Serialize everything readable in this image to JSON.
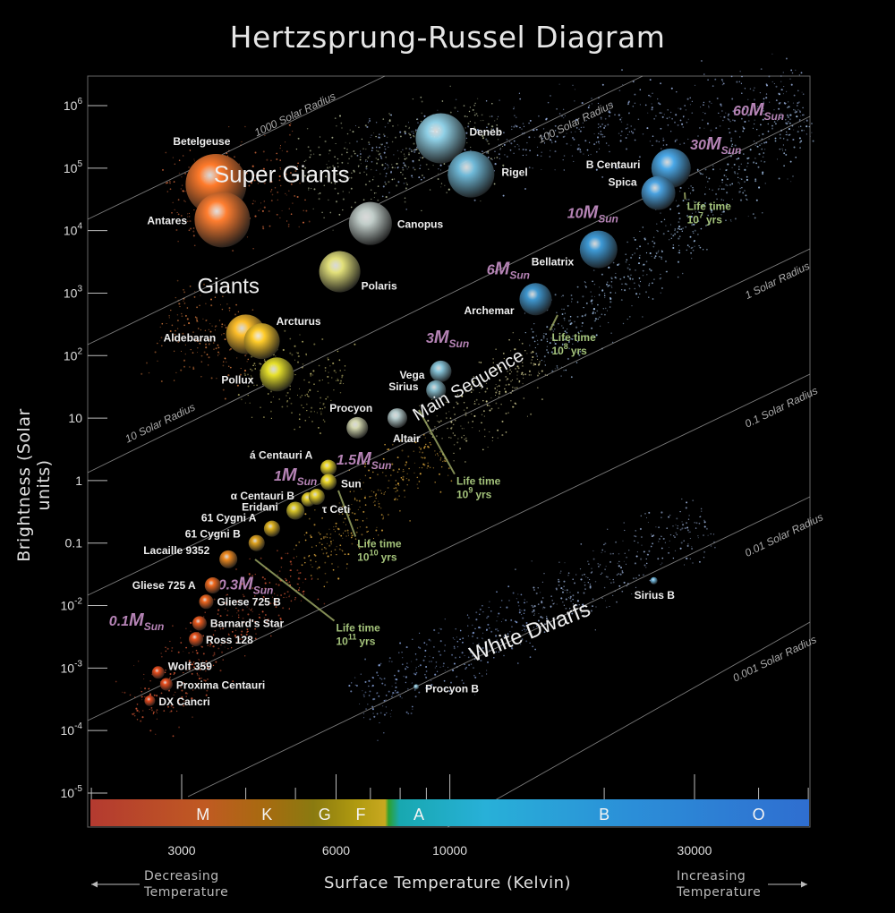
{
  "title": "Hertzsprung-Russel Diagram",
  "colors": {
    "background": "#000000",
    "life_time": "#a3c27a",
    "mass": "#b583b5"
  },
  "chart_data": {
    "type": "scatter",
    "title": "Hertzsprung-Russel Diagram",
    "xlabel": "Surface Temperature (Kelvin)",
    "ylabel": "Brightness (Solar units)",
    "x_scale": "log-reversed",
    "y_scale": "log",
    "xlim": [
      2000,
      50000
    ],
    "ylim": [
      1e-05,
      1000000
    ],
    "y_ticks": [
      {
        "base": "10",
        "exp": "-5",
        "value": 1e-05
      },
      {
        "base": "10",
        "exp": "-4",
        "value": 0.0001
      },
      {
        "base": "10",
        "exp": "-3",
        "value": 0.001
      },
      {
        "base": "10",
        "exp": "-2",
        "value": 0.01
      },
      {
        "base": "",
        "exp": "",
        "text": "0.1",
        "value": 0.1
      },
      {
        "base": "",
        "exp": "",
        "text": "1",
        "value": 1
      },
      {
        "base": "",
        "exp": "",
        "text": "10",
        "value": 10
      },
      {
        "base": "10",
        "exp": "2",
        "value": 100
      },
      {
        "base": "10",
        "exp": "3",
        "value": 1000
      },
      {
        "base": "10",
        "exp": "4",
        "value": 10000
      },
      {
        "base": "10",
        "exp": "5",
        "value": 100000
      },
      {
        "base": "10",
        "exp": "6",
        "value": 1000000
      }
    ],
    "x_ticks": [
      {
        "text": "3000",
        "value": 3000
      },
      {
        "text": "6000",
        "value": 6000
      },
      {
        "text": "10000",
        "value": 10000
      },
      {
        "text": "30000",
        "value": 30000
      }
    ],
    "spectral_classes": [
      {
        "text": "M",
        "temp": 3300
      },
      {
        "text": "K",
        "temp": 4400
      },
      {
        "text": "G",
        "temp": 5700
      },
      {
        "text": "F",
        "temp": 6700
      },
      {
        "text": "A",
        "temp": 8700
      },
      {
        "text": "B",
        "temp": 20000
      },
      {
        "text": "O",
        "temp": 40000
      }
    ],
    "regions": [
      {
        "text": "Super Giants",
        "temp": 4700,
        "lum": 60000,
        "size": 26,
        "rotate": 0
      },
      {
        "text": "Giants",
        "temp": 3700,
        "lum": 1000,
        "size": 24,
        "rotate": 0
      },
      {
        "text": "Main Sequence",
        "temp": 11000,
        "lum": 28,
        "size": 20,
        "rotate": -30
      },
      {
        "text": "White Dwarfs",
        "temp": 14500,
        "lum": 0.003,
        "size": 24,
        "rotate": -22
      }
    ],
    "radius_lines": [
      {
        "text": "1000  Solar Radius",
        "temp": 4200,
        "lum": 320000
      },
      {
        "text": "100  Solar Radius",
        "temp": 15000,
        "lum": 250000
      },
      {
        "text": "1 Solar Radius",
        "temp": 38000,
        "lum": 800
      },
      {
        "text": "0.1 Solar Radius",
        "temp": 38000,
        "lum": 7
      },
      {
        "text": "0.01  Solar Radius",
        "temp": 38000,
        "lum": 0.06
      },
      {
        "text": "0.001  Solar Radius",
        "temp": 36000,
        "lum": 0.0006
      },
      {
        "text": "10  Solar Radius",
        "temp": 2350,
        "lum": 4
      }
    ],
    "stars": [
      {
        "name": "Betelgeuse",
        "temp": 3500,
        "lum": 55000,
        "r": 34,
        "color": "#ff7a2a",
        "lx": -48,
        "ly": -44
      },
      {
        "name": "Antares",
        "temp": 3600,
        "lum": 15000,
        "r": 31,
        "color": "#ff7e30",
        "lx": -84,
        "ly": 5
      },
      {
        "name": "Deneb",
        "temp": 9600,
        "lum": 300000,
        "r": 28,
        "color": "#8fd0e6",
        "lx": 32,
        "ly": -3
      },
      {
        "name": "Rigel",
        "temp": 11000,
        "lum": 80000,
        "r": 26,
        "color": "#6fb9d8",
        "lx": 34,
        "ly": 2
      },
      {
        "name": "Canopus",
        "temp": 7000,
        "lum": 13000,
        "r": 24,
        "color": "#c0ccc8",
        "lx": 30,
        "ly": 5
      },
      {
        "name": "Polaris",
        "temp": 6100,
        "lum": 2200,
        "r": 23,
        "color": "#e2e07a",
        "lx": 24,
        "ly": 20
      },
      {
        "name": "Aldebaran",
        "temp": 4000,
        "lum": 220,
        "r": 22,
        "color": "#ffbf2a",
        "lx": -92,
        "ly": 8
      },
      {
        "name": "Arcturus",
        "temp": 4300,
        "lum": 170,
        "r": 20,
        "color": "#ffcc2a",
        "lx": 16,
        "ly": -18
      },
      {
        "name": "Pollux",
        "temp": 4600,
        "lum": 50,
        "r": 19,
        "color": "#e6e02a",
        "lx": -62,
        "ly": 10
      },
      {
        "name": "B Centauri",
        "temp": 27000,
        "lum": 100000,
        "r": 22,
        "color": "#4aa8e8",
        "lx": -95,
        "ly": 0
      },
      {
        "name": "Spica",
        "temp": 25500,
        "lum": 40000,
        "r": 19,
        "color": "#4aa2e0",
        "lx": -56,
        "ly": -8
      },
      {
        "name": "Bellatrix",
        "temp": 19500,
        "lum": 5000,
        "r": 21,
        "color": "#3e9ad6",
        "lx": -75,
        "ly": 18
      },
      {
        "name": "Archemar",
        "temp": 14700,
        "lum": 800,
        "r": 18,
        "color": "#3f97cf",
        "lx": -80,
        "ly": 17
      },
      {
        "name": "Vega",
        "temp": 9600,
        "lum": 56,
        "r": 12,
        "color": "#88c5da",
        "lx": -46,
        "ly": 8
      },
      {
        "name": "Sirius",
        "temp": 9400,
        "lum": 28,
        "r": 11,
        "color": "#86bccc",
        "lx": -53,
        "ly": 0
      },
      {
        "name": "Procyon",
        "temp": 6600,
        "lum": 7,
        "r": 12,
        "color": "#d4d8b0",
        "lx": -31,
        "ly": -18
      },
      {
        "name": "Altair",
        "temp": 7900,
        "lum": 10,
        "r": 11,
        "color": "#b8cfd0",
        "lx": -5,
        "ly": 27
      },
      {
        "name": "á Centauri A",
        "temp": 5800,
        "lum": 1.6,
        "r": 9,
        "color": "#ecd82a",
        "lx": -88,
        "ly": -10
      },
      {
        "name": "Sun",
        "temp": 5800,
        "lum": 0.95,
        "r": 9,
        "color": "#ecd82a",
        "lx": 14,
        "ly": 6
      },
      {
        "name": "α Centauri B",
        "temp": 5300,
        "lum": 0.5,
        "r": 8,
        "color": "#e6d02a",
        "lx": -87,
        "ly": 0
      },
      {
        "name": "τ Ceti",
        "temp": 5500,
        "lum": 0.55,
        "r": 9,
        "color": "#e6d02a",
        "lx": 6,
        "ly": 18
      },
      {
        "name": "Eridani",
        "temp": 5000,
        "lum": 0.33,
        "r": 10,
        "color": "#dcc82a",
        "lx": -60,
        "ly": 0
      },
      {
        "name": "61 Cygni A",
        "temp": 4500,
        "lum": 0.17,
        "r": 9,
        "color": "#e0b420",
        "lx": -79,
        "ly": -8
      },
      {
        "name": "61 Cygni B",
        "temp": 4200,
        "lum": 0.1,
        "r": 9,
        "color": "#e0a420",
        "lx": -80,
        "ly": -6
      },
      {
        "name": "Lacaille 9352",
        "temp": 3700,
        "lum": 0.055,
        "r": 10,
        "color": "#f08a20",
        "lx": -95,
        "ly": -6
      },
      {
        "name": "Gliese 725 A",
        "temp": 3450,
        "lum": 0.021,
        "r": 9,
        "color": "#f26a1e",
        "lx": -90,
        "ly": 4
      },
      {
        "name": "Gliese 725 B",
        "temp": 3350,
        "lum": 0.0115,
        "r": 8,
        "color": "#f0661e",
        "lx": 12,
        "ly": 4
      },
      {
        "name": "Barnard's Star",
        "temp": 3250,
        "lum": 0.0052,
        "r": 8,
        "color": "#ec5a1e",
        "lx": 12,
        "ly": 4
      },
      {
        "name": "Ross 128",
        "temp": 3200,
        "lum": 0.0029,
        "r": 8,
        "color": "#ea541e",
        "lx": 11,
        "ly": 5
      },
      {
        "name": "Wolf 359",
        "temp": 2700,
        "lum": 0.00085,
        "r": 7,
        "color": "#ea4e1e",
        "lx": 11,
        "ly": -3
      },
      {
        "name": "Proxima Centauri",
        "temp": 2800,
        "lum": 0.00055,
        "r": 7,
        "color": "#ea4e1e",
        "lx": 11,
        "ly": 5
      },
      {
        "name": "DX Cancri",
        "temp": 2600,
        "lum": 0.0003,
        "r": 6,
        "color": "#e84a1e",
        "lx": 10,
        "ly": 5
      },
      {
        "name": "Sirius B",
        "temp": 25000,
        "lum": 0.025,
        "r": 4,
        "color": "#6fb8e0",
        "lx": -22,
        "ly": 20
      },
      {
        "name": "Procyon B",
        "temp": 8600,
        "lum": 0.0005,
        "r": 3,
        "color": "#90c8e0",
        "lx": 10,
        "ly": 6
      }
    ],
    "mass_labels": [
      {
        "value": "60",
        "temp": 40000,
        "lum": 700000
      },
      {
        "value": "30",
        "temp": 33000,
        "lum": 200000
      },
      {
        "value": "10",
        "temp": 19000,
        "lum": 16000
      },
      {
        "value": "6",
        "temp": 13000,
        "lum": 2000
      },
      {
        "value": "3",
        "temp": 9900,
        "lum": 160
      },
      {
        "value": "1.5",
        "temp": 6800,
        "lum": 1.8
      },
      {
        "value": "1",
        "temp": 5000,
        "lum": 1.0
      },
      {
        "value": "0.3",
        "temp": 4000,
        "lum": 0.018
      },
      {
        "value": "0.1",
        "temp": 2450,
        "lum": 0.0048
      }
    ],
    "mass_unit": "M",
    "mass_sub": "Sun",
    "life_times": [
      {
        "label": "Life time",
        "base": "10",
        "exp": "7",
        "unit": "yrs",
        "temp": 29000,
        "lum": 20000,
        "lx1": 765,
        "ly1": 215
      },
      {
        "label": "Life time",
        "base": "10",
        "exp": "8",
        "unit": "yrs",
        "temp": 15800,
        "lum": 160,
        "lx1": 623,
        "ly1": 352
      },
      {
        "label": "Life time",
        "base": "10",
        "exp": "9",
        "unit": "yrs",
        "temp": 10300,
        "lum": 0.8,
        "lx1": 468,
        "ly1": 458
      },
      {
        "label": "Life time",
        "base": "10",
        "exp": "10",
        "unit": "yrs",
        "temp": 6600,
        "lum": 0.08,
        "lx1": 378,
        "ly1": 548
      },
      {
        "label": "Life time",
        "base": "10",
        "exp": "11",
        "unit": "yrs",
        "temp": 6000,
        "lum": 0.0036,
        "lx1": 285,
        "ly1": 625
      }
    ]
  },
  "axis_note_left": {
    "line1": "Decreasing",
    "line2": "Temperature"
  },
  "axis_note_right": {
    "line1": "Increasing",
    "line2": "Temperature"
  }
}
